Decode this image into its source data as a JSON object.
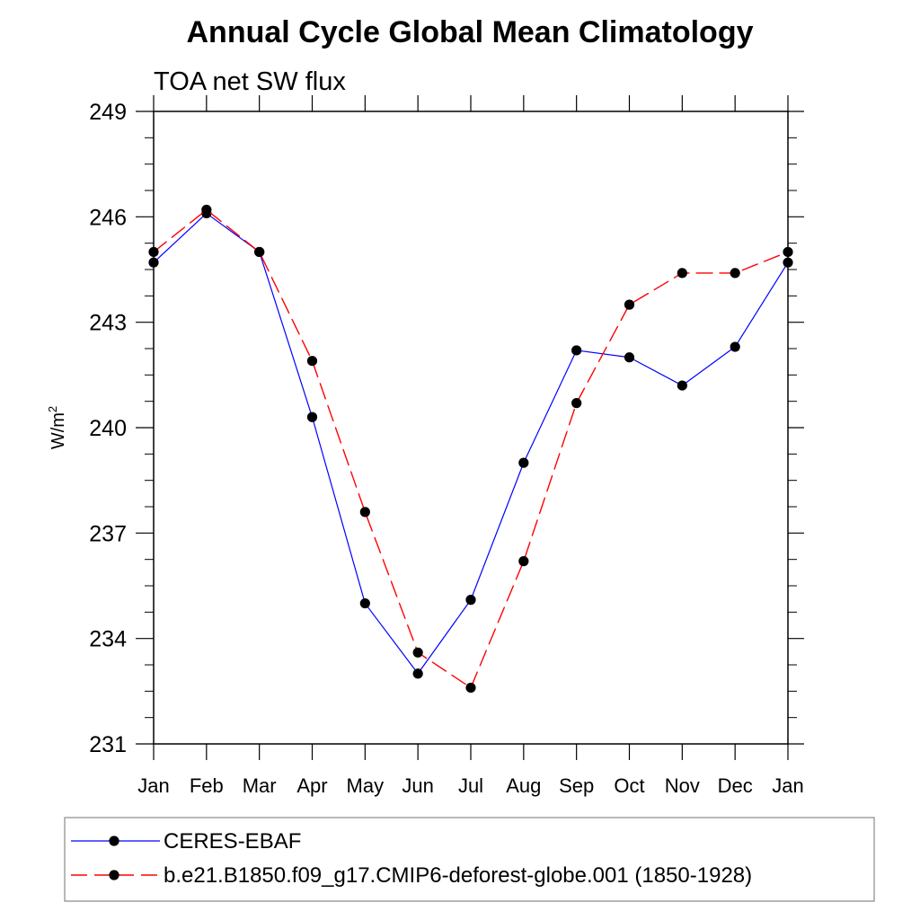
{
  "chart_data": {
    "type": "line",
    "title": "Annual Cycle Global Mean Climatology",
    "subtitle": "TOA net SW flux",
    "xlabel": "",
    "ylabel": "W/m",
    "ylabel_superscript": "2",
    "categories": [
      "Jan",
      "Feb",
      "Mar",
      "Apr",
      "May",
      "Jun",
      "Jul",
      "Aug",
      "Sep",
      "Oct",
      "Nov",
      "Dec",
      "Jan"
    ],
    "yticks": [
      "231",
      "234",
      "237",
      "240",
      "243",
      "246",
      "249"
    ],
    "ylim": [
      231,
      249
    ],
    "grid": false,
    "legend_position": "bottom",
    "series": [
      {
        "name": "CERES-EBAF",
        "color": "#0000ff",
        "line_style": "solid",
        "values": [
          244.7,
          246.1,
          245.0,
          240.3,
          235.0,
          233.0,
          235.1,
          239.0,
          242.2,
          242.0,
          241.2,
          242.3,
          244.7
        ]
      },
      {
        "name": "b.e21.B1850.f09_g17.CMIP6-deforest-globe.001 (1850-1928)",
        "color": "#ff0000",
        "line_style": "dashed",
        "values": [
          245.0,
          246.2,
          245.0,
          241.9,
          237.6,
          233.6,
          232.6,
          236.2,
          240.7,
          243.5,
          244.4,
          244.4,
          245.0
        ]
      }
    ]
  }
}
